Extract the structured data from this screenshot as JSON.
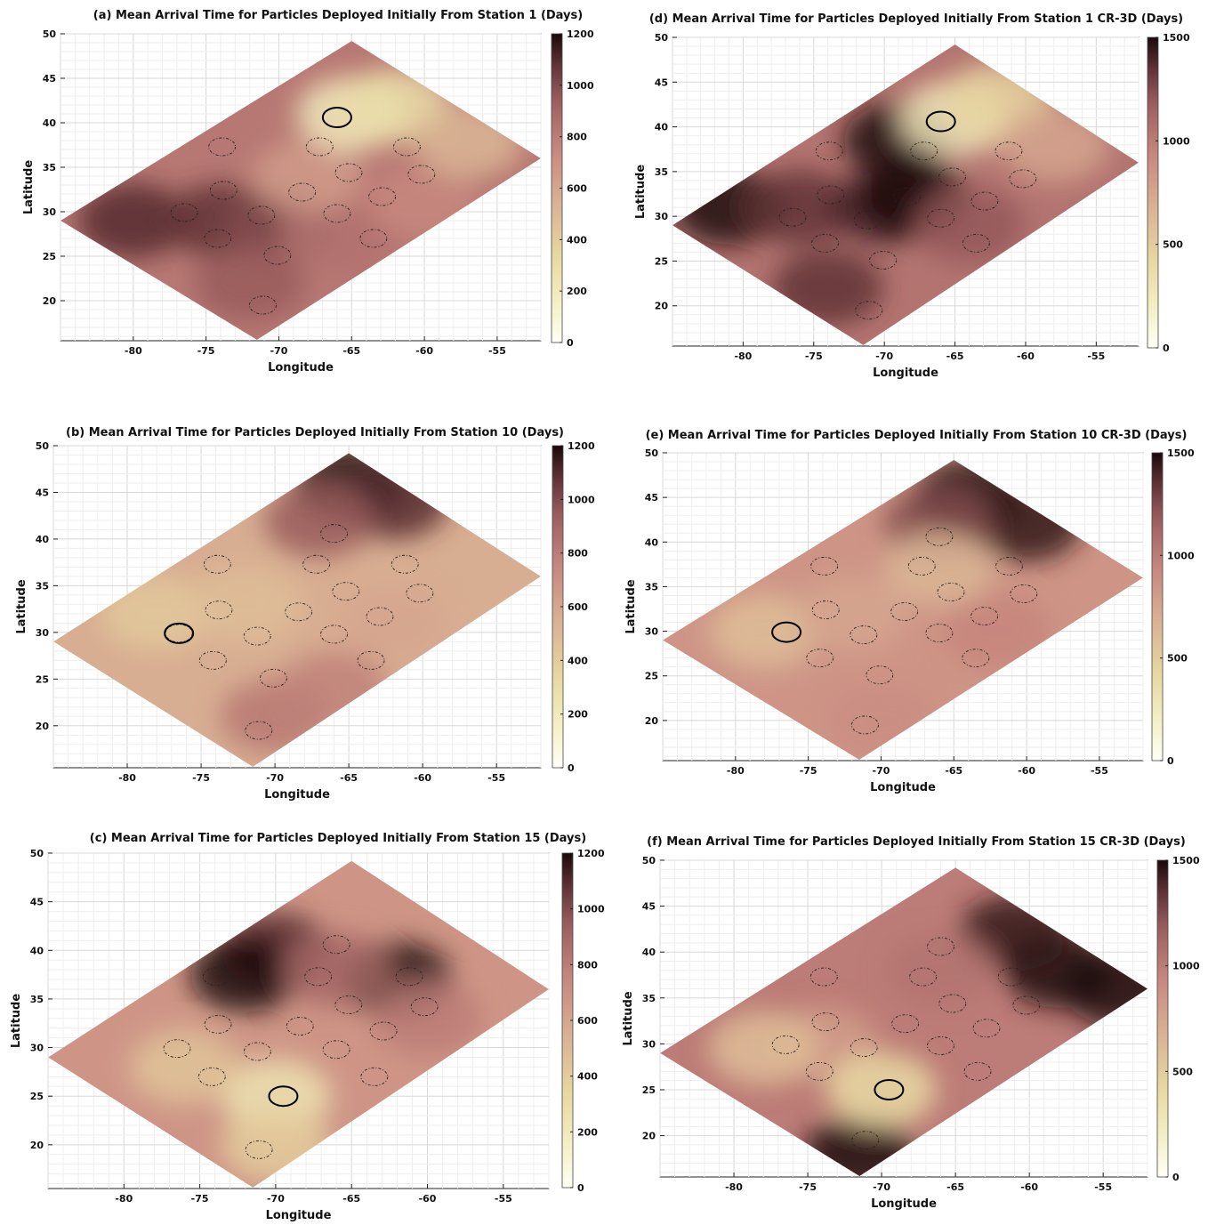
{
  "chart_data": [
    {
      "type": "heatmap",
      "panel": "a",
      "title": "(a) Mean Arrival Time for Particles Deployed Initially From Station 1",
      "colorbar_label": "(Days)",
      "xlabel": "Longitude",
      "ylabel": "Latitude",
      "x_ticks": [
        "-80",
        "-75",
        "-70",
        "-65",
        "-60",
        "-55"
      ],
      "y_ticks": [
        "20",
        "25",
        "30",
        "35",
        "40",
        "45",
        "50"
      ],
      "colorbar_ticks": [
        "0",
        "200",
        "400",
        "600",
        "800",
        "1000",
        "1200"
      ],
      "clim": [
        0,
        1200
      ],
      "xlim": [
        -85,
        -52
      ],
      "ylim": [
        15.5,
        50
      ],
      "domain_vertices": [
        [
          -65,
          49.2
        ],
        [
          -52,
          36
        ],
        [
          -71.5,
          15.6
        ],
        [
          -85,
          29
        ]
      ],
      "release_station": [
        -66,
        40.6
      ],
      "stations": [
        [
          -73.9,
          37.3
        ],
        [
          -67.2,
          37.3
        ],
        [
          -61.2,
          37.3
        ],
        [
          -73.8,
          32.4
        ],
        [
          -68.4,
          32.2
        ],
        [
          -65.2,
          34.4
        ],
        [
          -62.9,
          31.7
        ],
        [
          -60.2,
          34.2
        ],
        [
          -76.5,
          29.9
        ],
        [
          -71.2,
          29.6
        ],
        [
          -66,
          29.8
        ],
        [
          -74.2,
          27
        ],
        [
          -70.1,
          25.1
        ],
        [
          -63.5,
          27
        ],
        [
          -71.1,
          19.5
        ]
      ],
      "field_blobs": [
        {
          "lon": -80,
          "lat": 29,
          "value": 1100
        },
        {
          "lon": -74,
          "lat": 29,
          "value": 1080
        },
        {
          "lon": -70,
          "lat": 28.5,
          "value": 1000
        },
        {
          "lon": -72,
          "lat": 22,
          "value": 950
        },
        {
          "lon": -66,
          "lat": 27,
          "value": 850
        },
        {
          "lon": -60,
          "lat": 31,
          "value": 750
        },
        {
          "lon": -68,
          "lat": 34,
          "value": 650
        },
        {
          "lon": -65,
          "lat": 41,
          "value": 200
        },
        {
          "lon": -62,
          "lat": 42,
          "value": 300
        },
        {
          "lon": -57,
          "lat": 38,
          "value": 520
        }
      ],
      "background_value": 820
    },
    {
      "type": "heatmap",
      "panel": "b",
      "title": "(b) Mean Arrival Time for Particles Deployed Initially From Station 10",
      "colorbar_label": "(Days)",
      "xlabel": "Longitude",
      "ylabel": "Latitude",
      "x_ticks": [
        "-80",
        "-75",
        "-70",
        "-65",
        "-60",
        "-55"
      ],
      "y_ticks": [
        "20",
        "25",
        "30",
        "35",
        "40",
        "45",
        "50"
      ],
      "colorbar_ticks": [
        "0",
        "200",
        "400",
        "600",
        "800",
        "1000",
        "1200"
      ],
      "clim": [
        0,
        1200
      ],
      "xlim": [
        -85,
        -52
      ],
      "ylim": [
        15.5,
        50
      ],
      "domain_vertices": [
        [
          -65,
          49.2
        ],
        [
          -52,
          36
        ],
        [
          -71.5,
          15.6
        ],
        [
          -85,
          29
        ]
      ],
      "release_station": [
        -76.5,
        29.9
      ],
      "stations": [
        [
          -73.9,
          37.3
        ],
        [
          -67.2,
          37.3
        ],
        [
          -61.2,
          37.3
        ],
        [
          -73.8,
          32.4
        ],
        [
          -68.4,
          32.2
        ],
        [
          -65.2,
          34.4
        ],
        [
          -62.9,
          31.7
        ],
        [
          -60.2,
          34.2
        ],
        [
          -76.5,
          29.9
        ],
        [
          -71.2,
          29.6
        ],
        [
          -66,
          29.8
        ],
        [
          -74.2,
          27
        ],
        [
          -70.1,
          25.1
        ],
        [
          -63.5,
          27
        ],
        [
          -71.1,
          19.5
        ],
        [
          -66,
          40.6
        ]
      ],
      "field_blobs": [
        {
          "lon": -65,
          "lat": 46,
          "value": 1200
        },
        {
          "lon": -62,
          "lat": 44,
          "value": 1100
        },
        {
          "lon": -67,
          "lat": 42,
          "value": 950
        },
        {
          "lon": -78,
          "lat": 32,
          "value": 420
        },
        {
          "lon": -72,
          "lat": 33,
          "value": 480
        },
        {
          "lon": -62,
          "lat": 31,
          "value": 600
        },
        {
          "lon": -70,
          "lat": 21,
          "value": 820
        },
        {
          "lon": -66,
          "lat": 24,
          "value": 780
        }
      ],
      "background_value": 560
    },
    {
      "type": "heatmap",
      "panel": "c",
      "title": "(c) Mean Arrival Time for Particles Deployed Initially From Station 15",
      "colorbar_label": "(Days)",
      "xlabel": "Longitude",
      "ylabel": "Latitude",
      "x_ticks": [
        "-80",
        "-75",
        "-70",
        "-65",
        "-60",
        "-55"
      ],
      "y_ticks": [
        "20",
        "25",
        "30",
        "35",
        "40",
        "45",
        "50"
      ],
      "colorbar_ticks": [
        "0",
        "200",
        "400",
        "600",
        "800",
        "1000",
        "1200"
      ],
      "clim": [
        0,
        1200
      ],
      "xlim": [
        -85,
        -52
      ],
      "ylim": [
        15.5,
        50
      ],
      "domain_vertices": [
        [
          -65,
          49.2
        ],
        [
          -52,
          36
        ],
        [
          -71.5,
          15.6
        ],
        [
          -85,
          29
        ]
      ],
      "release_station": [
        -69.5,
        25
      ],
      "stations": [
        [
          -73.9,
          37.3
        ],
        [
          -67.2,
          37.3
        ],
        [
          -61.2,
          37.3
        ],
        [
          -73.8,
          32.4
        ],
        [
          -68.4,
          32.2
        ],
        [
          -65.2,
          34.4
        ],
        [
          -62.9,
          31.7
        ],
        [
          -60.2,
          34.2
        ],
        [
          -76.5,
          29.9
        ],
        [
          -71.2,
          29.6
        ],
        [
          -66,
          29.8
        ],
        [
          -74.2,
          27
        ],
        [
          -63.5,
          27
        ],
        [
          -71.1,
          19.5
        ],
        [
          -66,
          40.6
        ]
      ],
      "field_blobs": [
        {
          "lon": -70,
          "lat": 40,
          "value": 1100
        },
        {
          "lon": -72,
          "lat": 37.5,
          "value": 1200
        },
        {
          "lon": -62,
          "lat": 37,
          "value": 1200
        },
        {
          "lon": -66,
          "lat": 38,
          "value": 900
        },
        {
          "lon": -60,
          "lat": 33,
          "value": 800
        },
        {
          "lon": -70,
          "lat": 25,
          "value": 250
        },
        {
          "lon": -76,
          "lat": 28,
          "value": 450
        },
        {
          "lon": -70,
          "lat": 20,
          "value": 400
        }
      ],
      "background_value": 680
    },
    {
      "type": "heatmap",
      "panel": "d",
      "title": "(d) Mean Arrival Time for Particles Deployed Initially From Station 1  CR-3D",
      "colorbar_label": "(Days)",
      "xlabel": "Longitude",
      "ylabel": "Latitude",
      "x_ticks": [
        "-80",
        "-75",
        "-70",
        "-65",
        "-60",
        "-55"
      ],
      "y_ticks": [
        "20",
        "25",
        "30",
        "35",
        "40",
        "45",
        "50"
      ],
      "colorbar_ticks": [
        "0",
        "500",
        "1000",
        "1500"
      ],
      "clim": [
        0,
        1500
      ],
      "xlim": [
        -85,
        -52
      ],
      "ylim": [
        15.5,
        50
      ],
      "domain_vertices": [
        [
          -65,
          49.2
        ],
        [
          -52,
          36
        ],
        [
          -71.5,
          15.6
        ],
        [
          -85,
          29
        ]
      ],
      "release_station": [
        -66,
        40.6
      ],
      "stations": [
        [
          -73.9,
          37.3
        ],
        [
          -67.2,
          37.3
        ],
        [
          -61.2,
          37.3
        ],
        [
          -73.8,
          32.4
        ],
        [
          -68.4,
          32.2
        ],
        [
          -65.2,
          34.4
        ],
        [
          -62.9,
          31.7
        ],
        [
          -60.2,
          34.2
        ],
        [
          -76.5,
          29.9
        ],
        [
          -71.2,
          29.6
        ],
        [
          -66,
          29.8
        ],
        [
          -74.2,
          27
        ],
        [
          -70.1,
          25.1
        ],
        [
          -63.5,
          27
        ],
        [
          -71.1,
          19.5
        ]
      ],
      "field_blobs": [
        {
          "lon": -81,
          "lat": 31,
          "value": 1500
        },
        {
          "lon": -76,
          "lat": 31,
          "value": 1350
        },
        {
          "lon": -70,
          "lat": 31,
          "value": 1400
        },
        {
          "lon": -68,
          "lat": 32,
          "value": 1500
        },
        {
          "lon": -74,
          "lat": 22,
          "value": 1350
        },
        {
          "lon": -69,
          "lat": 38.5,
          "value": 1500
        },
        {
          "lon": -64,
          "lat": 29,
          "value": 1200
        },
        {
          "lon": -65,
          "lat": 41,
          "value": 250
        },
        {
          "lon": -62,
          "lat": 43,
          "value": 450
        },
        {
          "lon": -58,
          "lat": 38,
          "value": 750
        }
      ],
      "background_value": 1050
    },
    {
      "type": "heatmap",
      "panel": "e",
      "title": "(e) Mean Arrival Time for Particles Deployed Initially From Station 10  CR-3D",
      "colorbar_label": "(Days)",
      "xlabel": "Longitude",
      "ylabel": "Latitude",
      "x_ticks": [
        "-80",
        "-75",
        "-70",
        "-65",
        "-60",
        "-55"
      ],
      "y_ticks": [
        "20",
        "25",
        "30",
        "35",
        "40",
        "45",
        "50"
      ],
      "colorbar_ticks": [
        "0",
        "500",
        "1000",
        "1500"
      ],
      "clim": [
        0,
        1500
      ],
      "xlim": [
        -85,
        -52
      ],
      "ylim": [
        15.5,
        50
      ],
      "domain_vertices": [
        [
          -65,
          49.2
        ],
        [
          -52,
          36
        ],
        [
          -71.5,
          15.6
        ],
        [
          -85,
          29
        ]
      ],
      "release_station": [
        -76.5,
        29.9
      ],
      "stations": [
        [
          -73.9,
          37.3
        ],
        [
          -67.2,
          37.3
        ],
        [
          -61.2,
          37.3
        ],
        [
          -73.8,
          32.4
        ],
        [
          -68.4,
          32.2
        ],
        [
          -65.2,
          34.4
        ],
        [
          -62.9,
          31.7
        ],
        [
          -60.2,
          34.2
        ],
        [
          -71.2,
          29.6
        ],
        [
          -66,
          29.8
        ],
        [
          -74.2,
          27
        ],
        [
          -70.1,
          25.1
        ],
        [
          -63.5,
          27
        ],
        [
          -71.1,
          19.5
        ],
        [
          -66,
          40.6
        ]
      ],
      "field_blobs": [
        {
          "lon": -64,
          "lat": 45,
          "value": 1500
        },
        {
          "lon": -60,
          "lat": 42,
          "value": 1450
        },
        {
          "lon": -66,
          "lat": 42,
          "value": 1250
        },
        {
          "lon": -78,
          "lat": 30,
          "value": 600
        },
        {
          "lon": -72,
          "lat": 32,
          "value": 750
        },
        {
          "lon": -66,
          "lat": 37,
          "value": 650
        },
        {
          "lon": -62,
          "lat": 30,
          "value": 950
        },
        {
          "lon": -70,
          "lat": 20,
          "value": 900
        }
      ],
      "background_value": 850
    },
    {
      "type": "heatmap",
      "panel": "f",
      "title": "(f) Mean Arrival Time for Particles Deployed Initially From Station 15  CR-3D",
      "colorbar_label": "(Days)",
      "xlabel": "Longitude",
      "ylabel": "Latitude",
      "x_ticks": [
        "-80",
        "-75",
        "-70",
        "-65",
        "-60",
        "-55"
      ],
      "y_ticks": [
        "20",
        "25",
        "30",
        "35",
        "40",
        "45",
        "50"
      ],
      "colorbar_ticks": [
        "0",
        "500",
        "1000",
        "1500"
      ],
      "clim": [
        0,
        1500
      ],
      "xlim": [
        -85,
        -52
      ],
      "ylim": [
        15.5,
        50
      ],
      "domain_vertices": [
        [
          -65,
          49.2
        ],
        [
          -52,
          36
        ],
        [
          -71.5,
          15.6
        ],
        [
          -85,
          29
        ]
      ],
      "release_station": [
        -69.5,
        25
      ],
      "stations": [
        [
          -73.9,
          37.3
        ],
        [
          -67.2,
          37.3
        ],
        [
          -61.2,
          37.3
        ],
        [
          -73.8,
          32.4
        ],
        [
          -68.4,
          32.2
        ],
        [
          -65.2,
          34.4
        ],
        [
          -62.9,
          31.7
        ],
        [
          -60.2,
          34.2
        ],
        [
          -76.5,
          29.9
        ],
        [
          -71.2,
          29.6
        ],
        [
          -66,
          29.8
        ],
        [
          -74.2,
          27
        ],
        [
          -63.5,
          27
        ],
        [
          -71.1,
          19.5
        ],
        [
          -66,
          40.6
        ]
      ],
      "field_blobs": [
        {
          "lon": -58,
          "lat": 38,
          "value": 1500
        },
        {
          "lon": -54,
          "lat": 36,
          "value": 1500
        },
        {
          "lon": -61,
          "lat": 42,
          "value": 1450
        },
        {
          "lon": -71.5,
          "lat": 18,
          "value": 1500
        },
        {
          "lon": -66,
          "lat": 38,
          "value": 1050
        },
        {
          "lon": -74,
          "lat": 30,
          "value": 800
        },
        {
          "lon": -70,
          "lat": 25,
          "value": 400
        },
        {
          "lon": -78,
          "lat": 29.5,
          "value": 600
        }
      ],
      "background_value": 1000
    }
  ]
}
